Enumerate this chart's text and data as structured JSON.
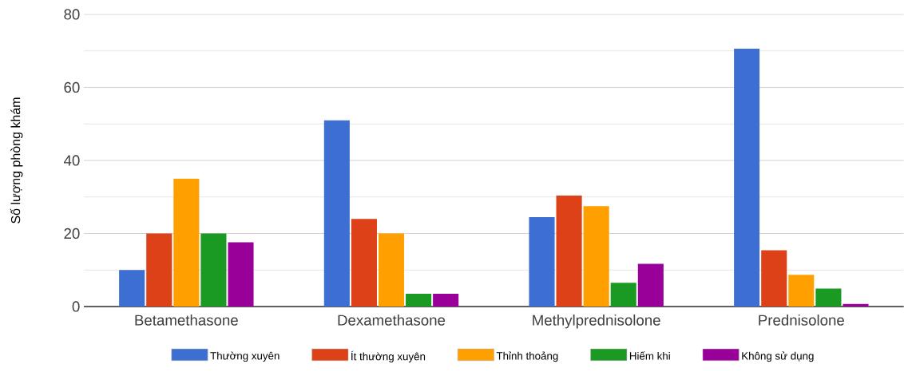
{
  "chart_data": {
    "type": "bar",
    "ylabel": "Số lượng phòng khám",
    "categories": [
      "Betamethasone",
      "Dexamethasone",
      "Methylprednisolone",
      "Prednisolone"
    ],
    "series": [
      {
        "name": "Thường xuyên",
        "color": "#3c6fd1",
        "values": [
          10,
          51,
          24.5,
          70.6
        ]
      },
      {
        "name": "Ít thường xuyên",
        "color": "#dc4118",
        "values": [
          20,
          24,
          30.4,
          15.4
        ]
      },
      {
        "name": "Thỉnh thoảng",
        "color": "#ff9f00",
        "values": [
          35,
          20,
          27.5,
          8.7
        ]
      },
      {
        "name": "Hiếm khi",
        "color": "#1a9a22",
        "values": [
          20,
          3.5,
          6.5,
          4.9
        ]
      },
      {
        "name": "Không sử dụng",
        "color": "#990099",
        "values": [
          17.6,
          3.5,
          11.7,
          0.7
        ]
      }
    ],
    "ylim": [
      0,
      80
    ],
    "yticks": [
      0,
      20,
      40,
      60,
      80
    ],
    "grid": "y",
    "legend": "bottom"
  }
}
